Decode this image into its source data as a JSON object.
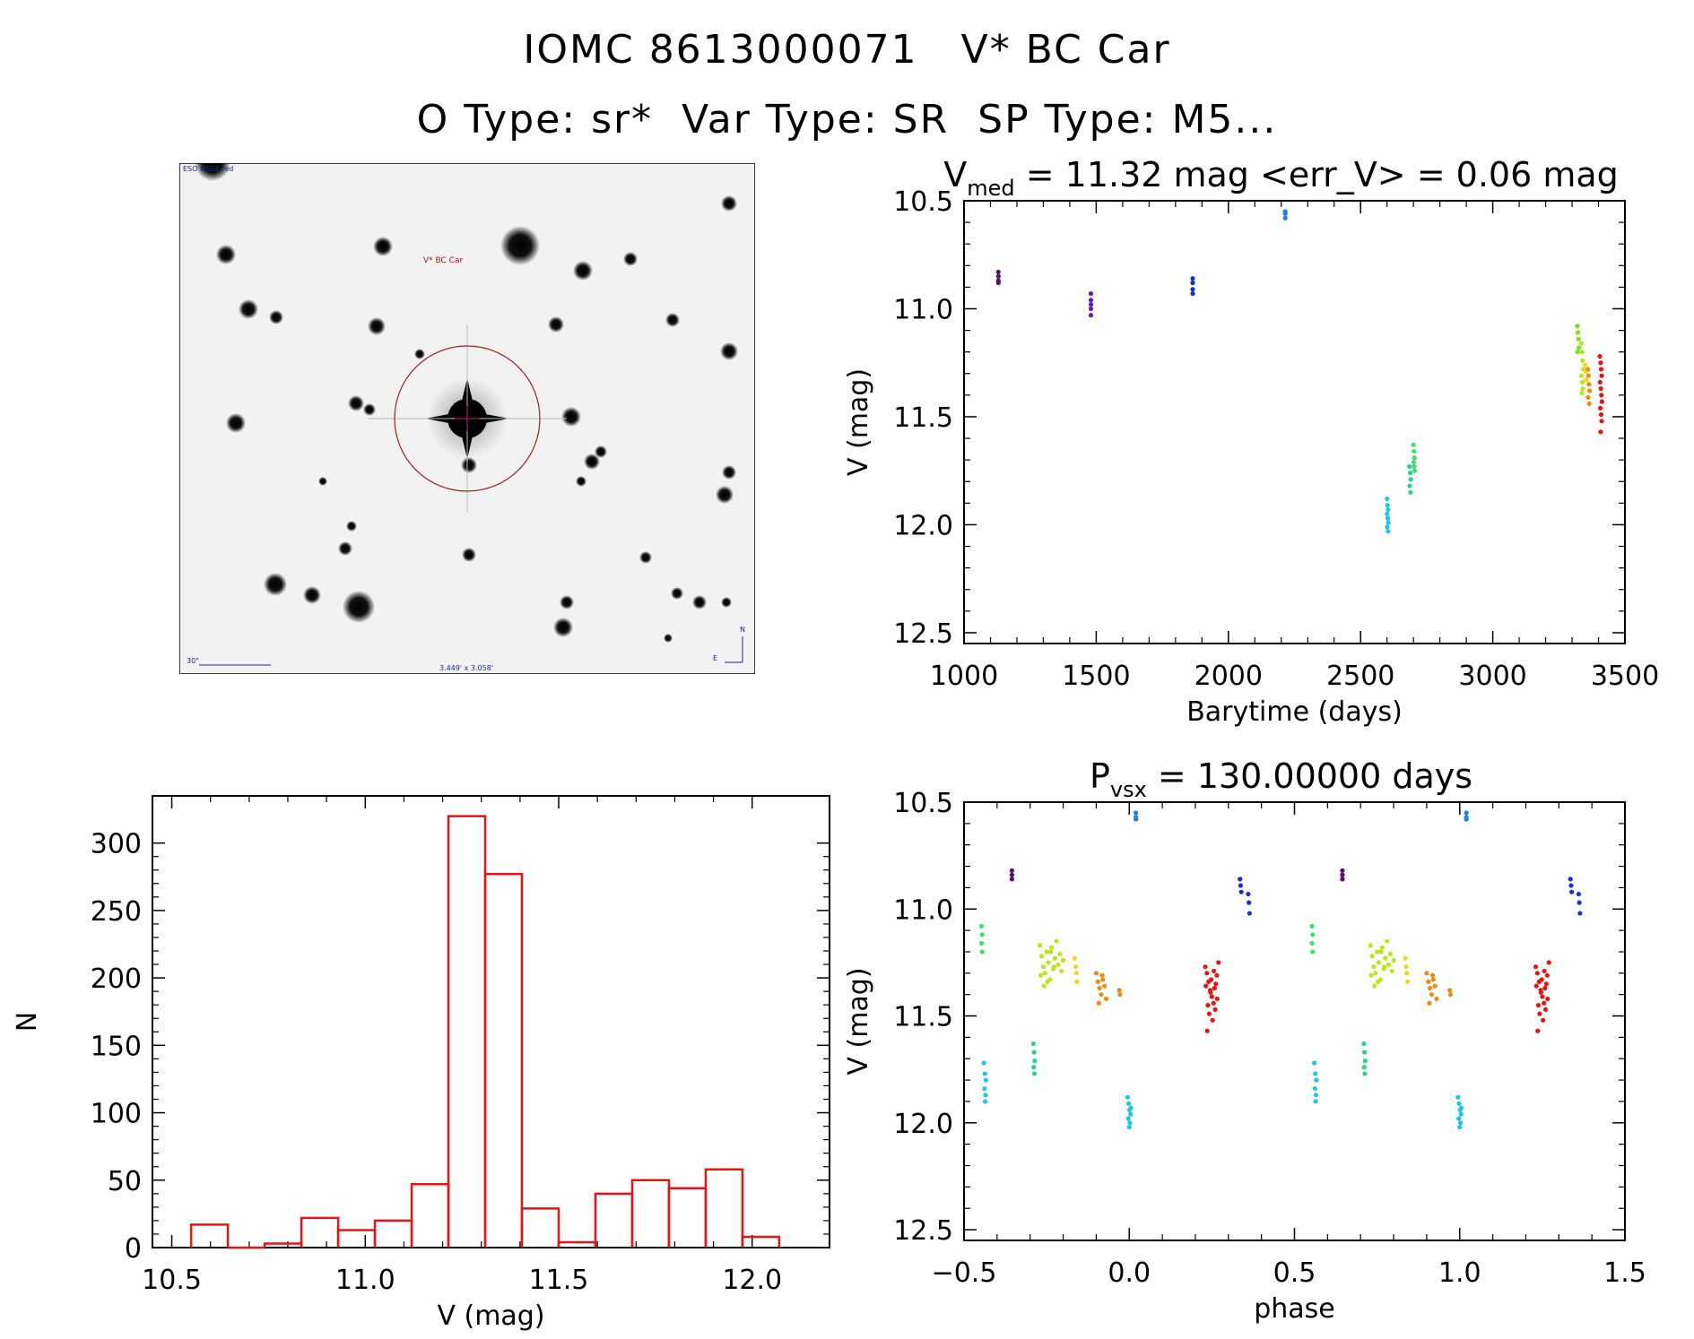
{
  "header": {
    "line1": "IOMC 8613000071   V* BC Car",
    "line2": "O Type: sr*  Var Type: SR  SP Type: M5..."
  },
  "finder": {
    "survey_label": "ESO DSS2-red",
    "target_label": "V* BC Car",
    "scale_label": "30\"",
    "fov_label": "3.449' x 3.058'",
    "north": "N",
    "east": "E"
  },
  "chart_data": [
    {
      "id": "lightcurve",
      "type": "scatter",
      "title_prefix": "V",
      "title_sub": "med",
      "title_rest": " = 11.32 mag <err_V> = 0.06 mag",
      "xlabel": "Barytime (days)",
      "ylabel": "V (mag)",
      "xlim": [
        1000,
        3500
      ],
      "ylim": [
        12.55,
        10.5
      ],
      "xticks": [
        1000,
        1500,
        2000,
        2500,
        3000,
        3500
      ],
      "yticks": [
        10.5,
        11.0,
        11.5,
        12.0,
        12.5
      ],
      "ytick_labels": [
        "10.5",
        "11.0",
        "11.5",
        "12.0",
        "12.5"
      ],
      "series": [
        {
          "name": "s1",
          "color": "#5a0f6e",
          "x": [
            1130,
            1130,
            1130,
            1130
          ],
          "y": [
            10.83,
            10.85,
            10.87,
            10.88
          ]
        },
        {
          "name": "s2",
          "color": "#6a1ab0",
          "x": [
            1480,
            1480,
            1480,
            1480,
            1480
          ],
          "y": [
            10.93,
            10.96,
            10.98,
            11.0,
            11.03
          ]
        },
        {
          "name": "s3",
          "color": "#1a2ed0",
          "x": [
            1865,
            1865,
            1865,
            1865
          ],
          "y": [
            10.86,
            10.88,
            10.91,
            10.93
          ]
        },
        {
          "name": "s4",
          "color": "#1e7fe8",
          "x": [
            2215,
            2215,
            2215
          ],
          "y": [
            10.55,
            10.56,
            10.58
          ]
        },
        {
          "name": "s5",
          "color": "#19c8e8",
          "x": [
            2600,
            2602,
            2604,
            2600,
            2603,
            2605,
            2601,
            2604
          ],
          "y": [
            11.88,
            11.91,
            11.93,
            11.95,
            11.97,
            11.99,
            12.01,
            12.03
          ]
        },
        {
          "name": "s6",
          "color": "#21d68a",
          "x": [
            2685,
            2688,
            2690,
            2686,
            2689
          ],
          "y": [
            11.73,
            11.76,
            11.79,
            11.82,
            11.85
          ]
        },
        {
          "name": "s7",
          "color": "#3ee06a",
          "x": [
            2700,
            2702,
            2704,
            2701,
            2703,
            2705
          ],
          "y": [
            11.63,
            11.66,
            11.69,
            11.71,
            11.73,
            11.75
          ]
        },
        {
          "name": "s8",
          "color": "#7be01e",
          "x": [
            3320,
            3322,
            3324,
            3326,
            3321
          ],
          "y": [
            11.08,
            11.11,
            11.14,
            11.18,
            11.2
          ]
        },
        {
          "name": "s9",
          "color": "#b8e81a",
          "x": [
            3335,
            3338,
            3340,
            3342,
            3336,
            3339,
            3341,
            3337
          ],
          "y": [
            11.16,
            11.2,
            11.24,
            11.28,
            11.31,
            11.34,
            11.37,
            11.39
          ]
        },
        {
          "name": "s10",
          "color": "#f0d814",
          "x": [
            3350,
            3352,
            3354
          ],
          "y": [
            11.26,
            11.29,
            11.33
          ]
        },
        {
          "name": "s11",
          "color": "#f08a10",
          "x": [
            3360,
            3362,
            3364,
            3366,
            3361,
            3365
          ],
          "y": [
            11.28,
            11.31,
            11.35,
            11.38,
            11.41,
            11.44
          ]
        },
        {
          "name": "s12",
          "color": "#e81414",
          "x": [
            3405,
            3408,
            3410,
            3412,
            3406,
            3409,
            3411,
            3413,
            3407,
            3410,
            3412,
            3408
          ],
          "y": [
            11.22,
            11.25,
            11.28,
            11.31,
            11.34,
            11.37,
            11.4,
            11.43,
            11.46,
            11.49,
            11.52,
            11.57
          ]
        }
      ]
    },
    {
      "id": "histogram",
      "type": "bar",
      "title": "",
      "xlabel": "V (mag)",
      "ylabel": "N",
      "xlim": [
        10.45,
        12.2
      ],
      "ylim": [
        0,
        335
      ],
      "xticks": [
        10.5,
        11.0,
        11.5,
        12.0
      ],
      "xtick_labels": [
        "10.5",
        "11.0",
        "11.5",
        "12.0"
      ],
      "yticks": [
        0,
        50,
        100,
        150,
        200,
        250,
        300
      ],
      "bin_width": 0.095,
      "bin_left": [
        10.55,
        10.645,
        10.74,
        10.835,
        10.93,
        11.025,
        11.12,
        11.215,
        11.31,
        11.405,
        11.5,
        11.595,
        11.69,
        11.785,
        11.88,
        11.975
      ],
      "values": [
        17,
        0,
        3,
        22,
        13,
        20,
        47,
        320,
        277,
        29,
        4,
        40,
        50,
        44,
        58,
        8
      ],
      "color": "#e81414"
    },
    {
      "id": "phased",
      "type": "scatter",
      "title_prefix": "P",
      "title_sub": "vsx",
      "title_rest": " = 130.00000 days",
      "xlabel": "phase",
      "ylabel": "V (mag)",
      "xlim": [
        -0.5,
        1.5
      ],
      "ylim": [
        12.55,
        10.5
      ],
      "xticks": [
        -0.5,
        0.0,
        0.5,
        1.0,
        1.5
      ],
      "xtick_labels": [
        "−0.5",
        "0.0",
        "0.5",
        "1.0",
        "1.5"
      ],
      "yticks": [
        10.5,
        11.0,
        11.5,
        12.0,
        12.5
      ],
      "ytick_labels": [
        "10.5",
        "11.0",
        "11.5",
        "12.0",
        "12.5"
      ],
      "series": [
        {
          "name": "p1",
          "color": "#5a0f6e",
          "x": [
            -0.355,
            -0.355,
            -0.355
          ],
          "y": [
            10.82,
            10.84,
            10.86
          ]
        },
        {
          "name": "p2",
          "color": "#1a2ed0",
          "x": [
            0.335,
            0.337,
            0.339,
            0.36,
            0.362,
            0.364
          ],
          "y": [
            10.86,
            10.89,
            10.92,
            10.93,
            10.97,
            11.02
          ]
        },
        {
          "name": "p3",
          "color": "#1e7fe8",
          "x": [
            0.02,
            0.02,
            0.02
          ],
          "y": [
            10.55,
            10.57,
            10.58
          ]
        },
        {
          "name": "p4",
          "color": "#3ee06a",
          "x": [
            -0.447,
            -0.445,
            -0.447,
            -0.445
          ],
          "y": [
            11.08,
            11.12,
            11.16,
            11.2
          ]
        },
        {
          "name": "p5",
          "color": "#21d68a",
          "x": [
            -0.29,
            -0.288,
            -0.286,
            -0.289,
            -0.287
          ],
          "y": [
            11.63,
            11.67,
            11.71,
            11.74,
            11.77
          ]
        },
        {
          "name": "p6",
          "color": "#19c8e8",
          "x": [
            -0.44,
            -0.437,
            -0.434,
            -0.438,
            -0.435,
            -0.436
          ],
          "y": [
            11.72,
            11.77,
            11.8,
            11.84,
            11.87,
            11.9
          ]
        },
        {
          "name": "p7",
          "color": "#19c8e8",
          "x": [
            -0.005,
            -0.002,
            0.001,
            0.004,
            -0.003,
            0.002,
            0.0,
            0.005
          ],
          "y": [
            11.88,
            11.91,
            11.94,
            11.96,
            11.98,
            12.0,
            12.02,
            11.93
          ]
        },
        {
          "name": "p8",
          "color": "#b8e81a",
          "x": [
            -0.27,
            -0.265,
            -0.26,
            -0.255,
            -0.25,
            -0.245,
            -0.24,
            -0.235,
            -0.23,
            -0.225,
            -0.22,
            -0.215,
            -0.21,
            -0.205,
            -0.2,
            -0.268,
            -0.258,
            -0.248,
            -0.238,
            -0.228
          ],
          "y": [
            11.17,
            11.22,
            11.27,
            11.3,
            11.2,
            11.25,
            11.33,
            11.18,
            11.28,
            11.23,
            11.15,
            11.26,
            11.21,
            11.29,
            11.24,
            11.31,
            11.36,
            11.34,
            11.2,
            11.27
          ]
        },
        {
          "name": "p9",
          "color": "#f0d814",
          "x": [
            -0.165,
            -0.162,
            -0.16,
            -0.158
          ],
          "y": [
            11.23,
            11.27,
            11.3,
            11.34
          ]
        },
        {
          "name": "p10",
          "color": "#f08a10",
          "x": [
            -0.1,
            -0.095,
            -0.09,
            -0.085,
            -0.08,
            -0.075,
            -0.07,
            -0.092,
            -0.082,
            -0.03,
            -0.028
          ],
          "y": [
            11.3,
            11.34,
            11.37,
            11.4,
            11.33,
            11.36,
            11.42,
            11.44,
            11.31,
            11.38,
            11.4
          ]
        },
        {
          "name": "p11",
          "color": "#e81414",
          "x": [
            0.23,
            0.235,
            0.24,
            0.245,
            0.25,
            0.255,
            0.26,
            0.265,
            0.27,
            0.232,
            0.242,
            0.252,
            0.262,
            0.236,
            0.246,
            0.256,
            0.266,
            0.238,
            0.248,
            0.258
          ],
          "y": [
            11.27,
            11.3,
            11.34,
            11.38,
            11.41,
            11.44,
            11.47,
            11.31,
            11.25,
            11.36,
            11.49,
            11.52,
            11.35,
            11.57,
            11.39,
            11.29,
            11.42,
            11.45,
            11.33,
            11.37
          ]
        },
        {
          "name": "p1b",
          "color": "#5a0f6e",
          "x": [
            0.645,
            0.645,
            0.645
          ],
          "y": [
            10.82,
            10.84,
            10.86
          ]
        },
        {
          "name": "p2b",
          "color": "#1a2ed0",
          "x": [
            1.335,
            1.337,
            1.339,
            1.36,
            1.362,
            1.364
          ],
          "y": [
            10.86,
            10.89,
            10.92,
            10.93,
            10.97,
            11.02
          ]
        },
        {
          "name": "p3b",
          "color": "#1e7fe8",
          "x": [
            1.02,
            1.02,
            1.02
          ],
          "y": [
            10.55,
            10.57,
            10.58
          ]
        },
        {
          "name": "p4b",
          "color": "#3ee06a",
          "x": [
            0.553,
            0.555,
            0.553,
            0.555
          ],
          "y": [
            11.08,
            11.12,
            11.16,
            11.2
          ]
        },
        {
          "name": "p5b",
          "color": "#21d68a",
          "x": [
            0.71,
            0.712,
            0.714,
            0.711,
            0.713
          ],
          "y": [
            11.63,
            11.67,
            11.71,
            11.74,
            11.77
          ]
        },
        {
          "name": "p6b",
          "color": "#19c8e8",
          "x": [
            0.56,
            0.563,
            0.566,
            0.562,
            0.565,
            0.564
          ],
          "y": [
            11.72,
            11.77,
            11.8,
            11.84,
            11.87,
            11.9
          ]
        },
        {
          "name": "p7b",
          "color": "#19c8e8",
          "x": [
            0.995,
            0.998,
            1.001,
            1.004,
            0.997,
            1.002,
            1.0,
            1.005
          ],
          "y": [
            11.88,
            11.91,
            11.94,
            11.96,
            11.98,
            12.0,
            12.02,
            11.93
          ]
        },
        {
          "name": "p8b",
          "color": "#b8e81a",
          "x": [
            0.73,
            0.735,
            0.74,
            0.745,
            0.75,
            0.755,
            0.76,
            0.765,
            0.77,
            0.775,
            0.78,
            0.785,
            0.79,
            0.795,
            0.8,
            0.732,
            0.742,
            0.752,
            0.762,
            0.772
          ],
          "y": [
            11.17,
            11.22,
            11.27,
            11.3,
            11.2,
            11.25,
            11.33,
            11.18,
            11.28,
            11.23,
            11.15,
            11.26,
            11.21,
            11.29,
            11.24,
            11.31,
            11.36,
            11.34,
            11.2,
            11.27
          ]
        },
        {
          "name": "p9b",
          "color": "#f0d814",
          "x": [
            0.835,
            0.838,
            0.84,
            0.842
          ],
          "y": [
            11.23,
            11.27,
            11.3,
            11.34
          ]
        },
        {
          "name": "p10b",
          "color": "#f08a10",
          "x": [
            0.9,
            0.905,
            0.91,
            0.915,
            0.92,
            0.925,
            0.93,
            0.908,
            0.918,
            0.97,
            0.972
          ],
          "y": [
            11.3,
            11.34,
            11.37,
            11.4,
            11.33,
            11.36,
            11.42,
            11.44,
            11.31,
            11.38,
            11.4
          ]
        },
        {
          "name": "p11b",
          "color": "#e81414",
          "x": [
            1.23,
            1.235,
            1.24,
            1.245,
            1.25,
            1.255,
            1.26,
            1.265,
            1.27,
            1.232,
            1.242,
            1.252,
            1.262,
            1.236,
            1.246,
            1.256,
            1.266,
            1.238,
            1.248,
            1.258
          ],
          "y": [
            11.27,
            11.3,
            11.34,
            11.38,
            11.41,
            11.44,
            11.47,
            11.31,
            11.25,
            11.36,
            11.49,
            11.52,
            11.35,
            11.57,
            11.39,
            11.29,
            11.42,
            11.45,
            11.33,
            11.37
          ]
        }
      ]
    }
  ]
}
